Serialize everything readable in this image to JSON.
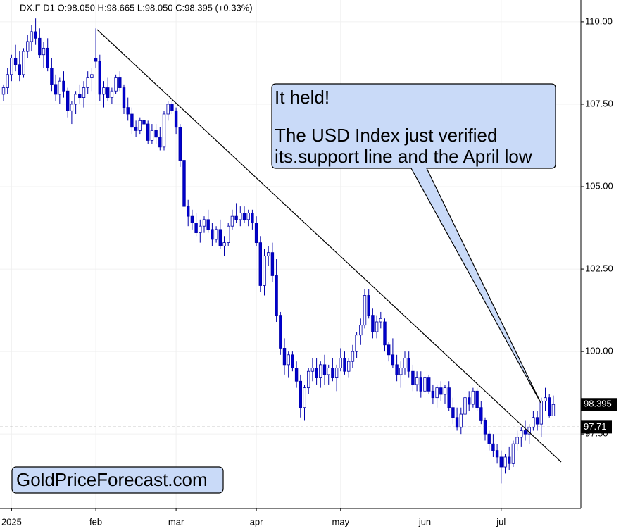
{
  "chart_data": {
    "type": "candlestick",
    "title": "DX.F  D1  O:98.050  H:98.665  L:98.050  C:98.395  (+0.33%)",
    "annotation": [
      "It held!",
      "The USD Index just verified",
      "its.support line and the April low"
    ],
    "brand": "GoldPriceForecast.com",
    "up_color": "#ffffff",
    "down_color": "#0000cc",
    "outline_color": "#0000aa",
    "grid": true,
    "ylim": [
      95.24,
      110.66
    ],
    "yticks": [
      {
        "value": 97.5,
        "label": "97.50"
      },
      {
        "value": 100,
        "label": "100.00"
      },
      {
        "value": 102.5,
        "label": "102.50"
      },
      {
        "value": 105,
        "label": "105.00"
      },
      {
        "value": 107.5,
        "label": "107.50"
      },
      {
        "value": 110,
        "label": "110.00"
      }
    ],
    "reference_line": 97.71,
    "categories": [
      null,
      null,
      "2025",
      null,
      null,
      null,
      null,
      null,
      null,
      null,
      null,
      null,
      null,
      null,
      null,
      null,
      null,
      null,
      null,
      null,
      null,
      null,
      null,
      "feb",
      null,
      null,
      null,
      null,
      null,
      null,
      null,
      null,
      null,
      null,
      null,
      null,
      null,
      null,
      null,
      null,
      null,
      null,
      null,
      "mar",
      null,
      null,
      null,
      null,
      null,
      null,
      null,
      null,
      null,
      null,
      null,
      null,
      null,
      null,
      null,
      null,
      null,
      null,
      null,
      "apr",
      null,
      null,
      null,
      null,
      null,
      null,
      null,
      null,
      null,
      null,
      null,
      null,
      null,
      null,
      null,
      null,
      null,
      null,
      null,
      null,
      "may",
      null,
      null,
      null,
      null,
      null,
      null,
      null,
      null,
      null,
      null,
      null,
      null,
      null,
      null,
      null,
      null,
      null,
      null,
      null,
      null,
      "jun",
      null,
      null,
      null,
      null,
      null,
      null,
      null,
      null,
      null,
      null,
      null,
      null,
      null,
      null,
      null,
      null,
      null,
      null,
      "jul",
      null,
      null,
      null,
      null,
      null,
      null,
      null,
      null,
      null,
      null,
      null,
      null,
      null
    ],
    "candles": [
      [
        107.8,
        108.1,
        107.6,
        108.0
      ],
      [
        108.0,
        108.6,
        107.8,
        108.4
      ],
      [
        108.4,
        109.0,
        108.2,
        108.9
      ],
      [
        108.9,
        109.3,
        108.5,
        108.7
      ],
      [
        108.7,
        109.1,
        108.2,
        108.4
      ],
      [
        108.4,
        109.2,
        108.3,
        109.1
      ],
      [
        109.1,
        109.6,
        108.9,
        109.4
      ],
      [
        109.4,
        109.9,
        109.1,
        109.7
      ],
      [
        109.7,
        110.1,
        109.3,
        109.5
      ],
      [
        109.5,
        109.8,
        108.9,
        109.0
      ],
      [
        109.0,
        109.4,
        108.6,
        109.2
      ],
      [
        109.2,
        109.5,
        108.5,
        108.6
      ],
      [
        108.6,
        108.9,
        107.9,
        108.1
      ],
      [
        108.1,
        108.4,
        107.6,
        107.8
      ],
      [
        107.8,
        108.3,
        107.5,
        108.2
      ],
      [
        108.2,
        108.5,
        107.7,
        107.9
      ],
      [
        107.9,
        108.0,
        107.1,
        107.3
      ],
      [
        107.3,
        107.6,
        106.9,
        107.5
      ],
      [
        107.5,
        107.9,
        107.2,
        107.8
      ],
      [
        107.8,
        108.1,
        107.5,
        107.7
      ],
      [
        107.7,
        108.2,
        107.4,
        108.0
      ],
      [
        108.0,
        108.5,
        107.8,
        108.3
      ],
      [
        108.3,
        108.6,
        107.9,
        108.4
      ],
      [
        108.9,
        109.8,
        108.6,
        108.8
      ],
      [
        108.8,
        109.0,
        107.6,
        107.8
      ],
      [
        107.8,
        108.2,
        107.4,
        108.0
      ],
      [
        108.0,
        108.3,
        107.6,
        107.7
      ],
      [
        107.7,
        108.0,
        107.5,
        107.9
      ],
      [
        107.9,
        108.4,
        107.8,
        108.3
      ],
      [
        108.3,
        108.5,
        107.9,
        108.0
      ],
      [
        108.0,
        108.1,
        107.2,
        107.4
      ],
      [
        107.4,
        107.7,
        107.0,
        107.2
      ],
      [
        107.2,
        107.4,
        106.6,
        106.8
      ],
      [
        106.8,
        107.0,
        106.5,
        106.7
      ],
      [
        106.7,
        107.1,
        106.6,
        107.0
      ],
      [
        107.0,
        107.3,
        106.8,
        106.9
      ],
      [
        106.9,
        107.0,
        106.3,
        106.4
      ],
      [
        106.4,
        106.9,
        106.3,
        106.7
      ],
      [
        106.7,
        106.9,
        106.3,
        106.5
      ],
      [
        106.5,
        106.8,
        106.1,
        106.2
      ],
      [
        106.2,
        107.3,
        106.1,
        107.2
      ],
      [
        107.2,
        107.6,
        107.0,
        107.5
      ],
      [
        107.5,
        107.6,
        107.2,
        107.3
      ],
      [
        107.3,
        107.4,
        106.6,
        106.8
      ],
      [
        106.8,
        106.9,
        105.6,
        105.8
      ],
      [
        105.8,
        106.0,
        104.2,
        104.4
      ],
      [
        104.4,
        104.6,
        103.8,
        104.1
      ],
      [
        104.1,
        104.3,
        103.7,
        103.9
      ],
      [
        103.9,
        104.2,
        103.5,
        103.6
      ],
      [
        103.6,
        104.0,
        103.3,
        103.8
      ],
      [
        103.8,
        104.1,
        103.6,
        104.0
      ],
      [
        104.0,
        104.3,
        103.6,
        103.7
      ],
      [
        103.7,
        103.9,
        103.2,
        103.4
      ],
      [
        103.4,
        103.8,
        103.3,
        103.7
      ],
      [
        103.7,
        104.0,
        103.1,
        103.2
      ],
      [
        103.2,
        103.5,
        102.9,
        103.3
      ],
      [
        103.3,
        103.9,
        103.2,
        103.8
      ],
      [
        103.8,
        104.3,
        103.7,
        104.1
      ],
      [
        104.1,
        104.5,
        103.9,
        104.0
      ],
      [
        104.0,
        104.4,
        103.8,
        104.2
      ],
      [
        104.2,
        104.4,
        103.9,
        104.0
      ],
      [
        104.0,
        104.3,
        103.8,
        104.2
      ],
      [
        104.2,
        104.3,
        103.7,
        103.9
      ],
      [
        103.9,
        104.1,
        103.2,
        103.3
      ],
      [
        103.3,
        103.5,
        101.8,
        102.0
      ],
      [
        102.0,
        103.1,
        101.7,
        102.9
      ],
      [
        102.9,
        103.2,
        102.6,
        103.0
      ],
      [
        103.0,
        103.3,
        102.1,
        102.3
      ],
      [
        102.3,
        102.8,
        100.9,
        101.1
      ],
      [
        101.1,
        101.2,
        99.9,
        100.1
      ],
      [
        100.1,
        100.4,
        99.3,
        99.6
      ],
      [
        99.6,
        100.0,
        99.2,
        99.9
      ],
      [
        99.9,
        100.0,
        99.4,
        99.5
      ],
      [
        99.5,
        99.7,
        98.9,
        99.1
      ],
      [
        99.1,
        99.3,
        98.0,
        98.3
      ],
      [
        98.3,
        99.0,
        97.9,
        98.9
      ],
      [
        98.9,
        99.5,
        98.7,
        99.4
      ],
      [
        99.4,
        99.8,
        99.1,
        99.5
      ],
      [
        99.5,
        99.8,
        99.0,
        99.2
      ],
      [
        99.2,
        99.7,
        98.9,
        99.6
      ],
      [
        99.6,
        99.9,
        99.0,
        99.3
      ],
      [
        99.3,
        99.6,
        99.0,
        99.5
      ],
      [
        99.5,
        99.8,
        99.1,
        99.2
      ],
      [
        99.2,
        99.6,
        98.8,
        99.5
      ],
      [
        99.5,
        100.1,
        99.4,
        99.8
      ],
      [
        99.8,
        100.0,
        99.3,
        99.4
      ],
      [
        99.4,
        99.8,
        99.2,
        99.7
      ],
      [
        99.7,
        100.2,
        99.5,
        100.0
      ],
      [
        100.0,
        100.6,
        99.8,
        100.5
      ],
      [
        100.5,
        101.0,
        100.2,
        100.8
      ],
      [
        100.8,
        101.9,
        100.7,
        101.7
      ],
      [
        101.7,
        101.9,
        101.0,
        101.1
      ],
      [
        101.1,
        101.3,
        100.4,
        100.6
      ],
      [
        100.6,
        101.1,
        100.4,
        100.9
      ],
      [
        100.9,
        101.2,
        100.7,
        101.0
      ],
      [
        100.9,
        101.0,
        100.0,
        100.2
      ],
      [
        100.2,
        100.3,
        99.7,
        99.9
      ],
      [
        99.9,
        100.4,
        99.5,
        99.6
      ],
      [
        99.6,
        99.9,
        99.1,
        99.3
      ],
      [
        99.3,
        99.7,
        98.9,
        99.5
      ],
      [
        99.5,
        100.0,
        99.3,
        99.8
      ],
      [
        99.8,
        100.0,
        99.2,
        99.4
      ],
      [
        99.4,
        99.6,
        98.8,
        99.0
      ],
      [
        99.0,
        99.4,
        98.8,
        99.2
      ],
      [
        99.2,
        99.4,
        98.6,
        98.8
      ],
      [
        98.8,
        99.3,
        98.7,
        99.2
      ],
      [
        99.2,
        99.3,
        98.7,
        98.8
      ],
      [
        98.8,
        99.0,
        98.4,
        98.6
      ],
      [
        98.6,
        99.0,
        98.3,
        98.9
      ],
      [
        98.9,
        99.1,
        98.5,
        98.7
      ],
      [
        98.7,
        99.0,
        98.4,
        98.9
      ],
      [
        98.9,
        99.1,
        98.2,
        98.3
      ],
      [
        98.3,
        98.6,
        97.8,
        98.0
      ],
      [
        98.0,
        98.3,
        97.6,
        97.7
      ],
      [
        97.7,
        98.3,
        97.5,
        98.1
      ],
      [
        98.1,
        98.7,
        98.0,
        98.6
      ],
      [
        98.6,
        98.8,
        98.2,
        98.4
      ],
      [
        98.4,
        98.9,
        98.3,
        98.8
      ],
      [
        98.8,
        98.9,
        98.2,
        98.3
      ],
      [
        98.3,
        98.5,
        97.8,
        97.9
      ],
      [
        97.9,
        98.0,
        97.3,
        97.5
      ],
      [
        97.5,
        97.6,
        97.0,
        97.2
      ],
      [
        97.2,
        97.5,
        96.8,
        97.0
      ],
      [
        97.0,
        97.2,
        96.6,
        96.8
      ],
      [
        96.8,
        97.0,
        96.0,
        96.5
      ],
      [
        96.5,
        96.9,
        96.3,
        96.8
      ],
      [
        96.8,
        97.1,
        96.4,
        96.6
      ],
      [
        96.6,
        97.3,
        96.5,
        97.2
      ],
      [
        97.2,
        97.6,
        97.0,
        97.4
      ],
      [
        97.4,
        97.7,
        97.1,
        97.6
      ],
      [
        97.6,
        97.9,
        97.3,
        97.5
      ],
      [
        97.5,
        97.8,
        97.2,
        97.7
      ],
      [
        97.7,
        98.2,
        97.6,
        98.0
      ],
      [
        98.0,
        98.2,
        97.6,
        97.8
      ],
      [
        97.8,
        98.6,
        97.4,
        98.5
      ],
      [
        98.5,
        98.9,
        98.2,
        98.6
      ],
      [
        98.6,
        98.7,
        98.0,
        98.05
      ],
      [
        98.05,
        98.665,
        98.05,
        98.395
      ]
    ]
  }
}
